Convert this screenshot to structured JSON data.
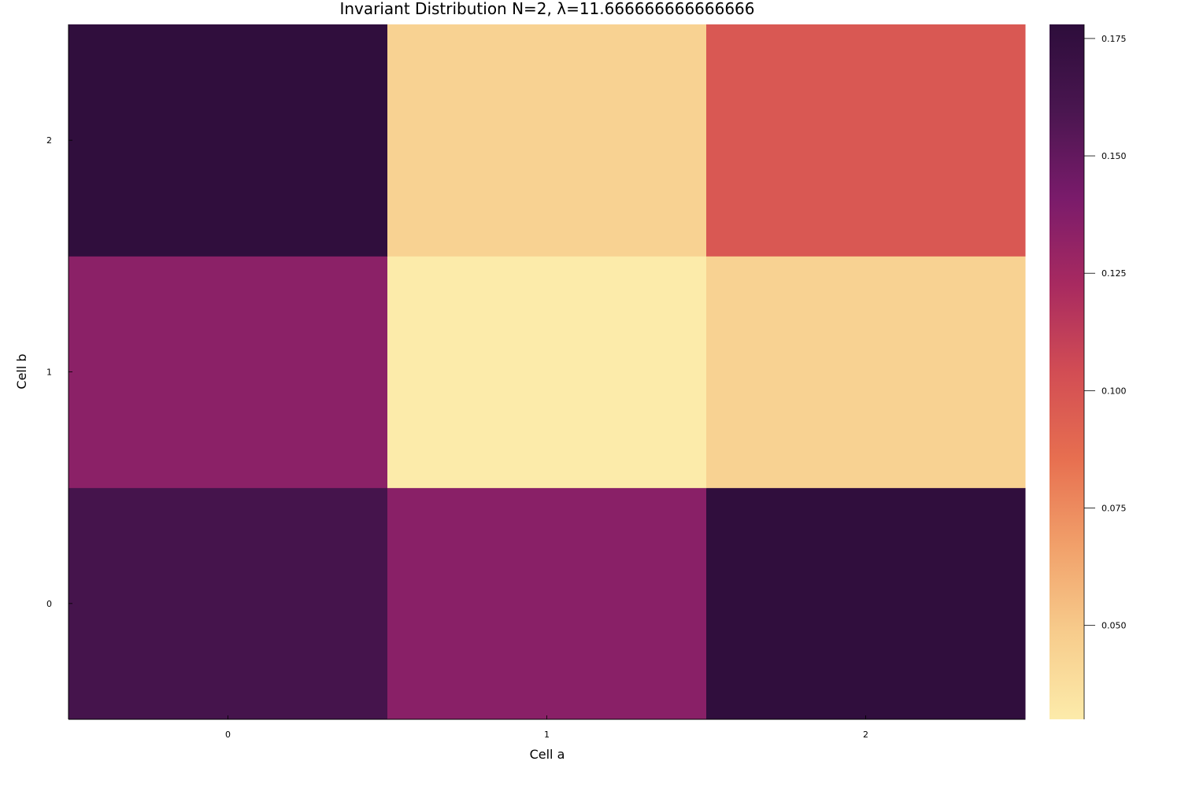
{
  "chart_data": {
    "type": "heatmap",
    "title": "Invariant Distribution N=2, λ=11.666666666666666",
    "xlabel": "Cell a",
    "ylabel": "Cell b",
    "x": [
      0,
      1,
      2
    ],
    "y": [
      0,
      1,
      2
    ],
    "x_tick_labels": [
      "0",
      "1",
      "2"
    ],
    "y_tick_labels": [
      "0",
      "1",
      "2"
    ],
    "z": [
      [
        0.163,
        0.135,
        0.176
      ],
      [
        0.134,
        0.03,
        0.045
      ],
      [
        0.176,
        0.045,
        0.098
      ]
    ],
    "colorbar": {
      "range": [
        0.03,
        0.178
      ],
      "ticks": [
        0.05,
        0.075,
        0.1,
        0.125,
        0.15,
        0.175
      ],
      "tick_labels": [
        "0.050",
        "0.075",
        "0.100",
        "0.125",
        "0.150",
        "0.175"
      ],
      "colormap": "magma (reversed)",
      "color_stops": [
        "#fcebaa",
        "#f7cc8c",
        "#f1a06a",
        "#e76f50",
        "#d24d54",
        "#a82a60",
        "#7a1b6b",
        "#4a1650",
        "#2d0d3b"
      ]
    },
    "grid": false
  }
}
